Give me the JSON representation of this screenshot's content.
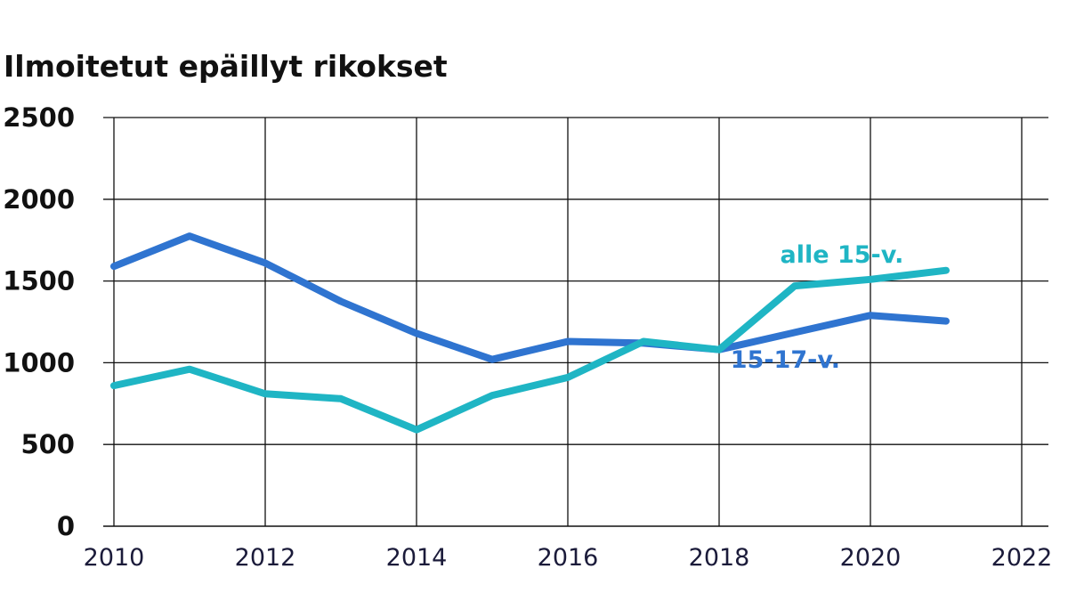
{
  "chart_data": {
    "type": "line",
    "title": "Ilmoitetut epäillyt rikokset",
    "xlabel": "",
    "ylabel": "",
    "xlim": [
      2010,
      2022
    ],
    "ylim": [
      0,
      2500
    ],
    "xticks": [
      "2010",
      "2012",
      "2014",
      "2016",
      "2018",
      "2020",
      "2022"
    ],
    "yticks": [
      "0",
      "500",
      "1000",
      "1500",
      "2000",
      "2500"
    ],
    "grid": true,
    "x": [
      2010,
      2011,
      2012,
      2013,
      2014,
      2015,
      2016,
      2017,
      2018,
      2019,
      2020,
      2021
    ],
    "series": [
      {
        "name": "15-17-v.",
        "color": "#2f74d0",
        "values": [
          1590,
          1775,
          1610,
          1375,
          1180,
          1020,
          1130,
          1120,
          1080,
          1185,
          1290,
          1255
        ]
      },
      {
        "name": "alle 15-v.",
        "color": "#1fb5c4",
        "values": [
          860,
          960,
          810,
          780,
          590,
          800,
          910,
          1130,
          1080,
          1470,
          1510,
          1565
        ]
      }
    ]
  }
}
